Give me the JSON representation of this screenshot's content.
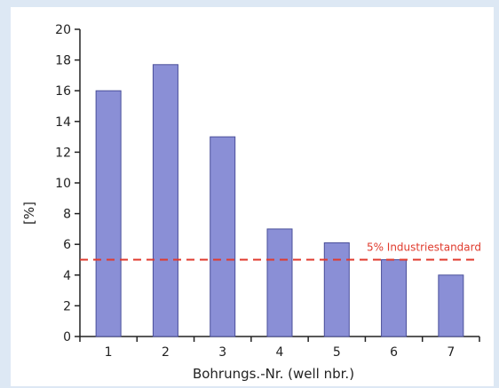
{
  "chart_data": {
    "type": "bar",
    "categories": [
      "1",
      "2",
      "3",
      "4",
      "5",
      "6",
      "7"
    ],
    "values": [
      16,
      17.7,
      13,
      7,
      6.1,
      5,
      4
    ],
    "xlabel": "Bohrungs.-Nr. (well nbr.)",
    "ylabel": "[%]",
    "ylim": [
      0,
      20
    ],
    "yticks": [
      0,
      2,
      4,
      6,
      8,
      10,
      12,
      14,
      16,
      18,
      20
    ],
    "bar_color": "#8a8fd6",
    "bar_stroke": "#4a4f9a",
    "reference_line": {
      "value": 5,
      "label": "5% Industriestandard",
      "color": "#e03a2c",
      "style": "dashed"
    },
    "grid": false,
    "legend": "none"
  },
  "colors": {
    "background": "#dde8f4",
    "plot_background": "#ffffff"
  }
}
